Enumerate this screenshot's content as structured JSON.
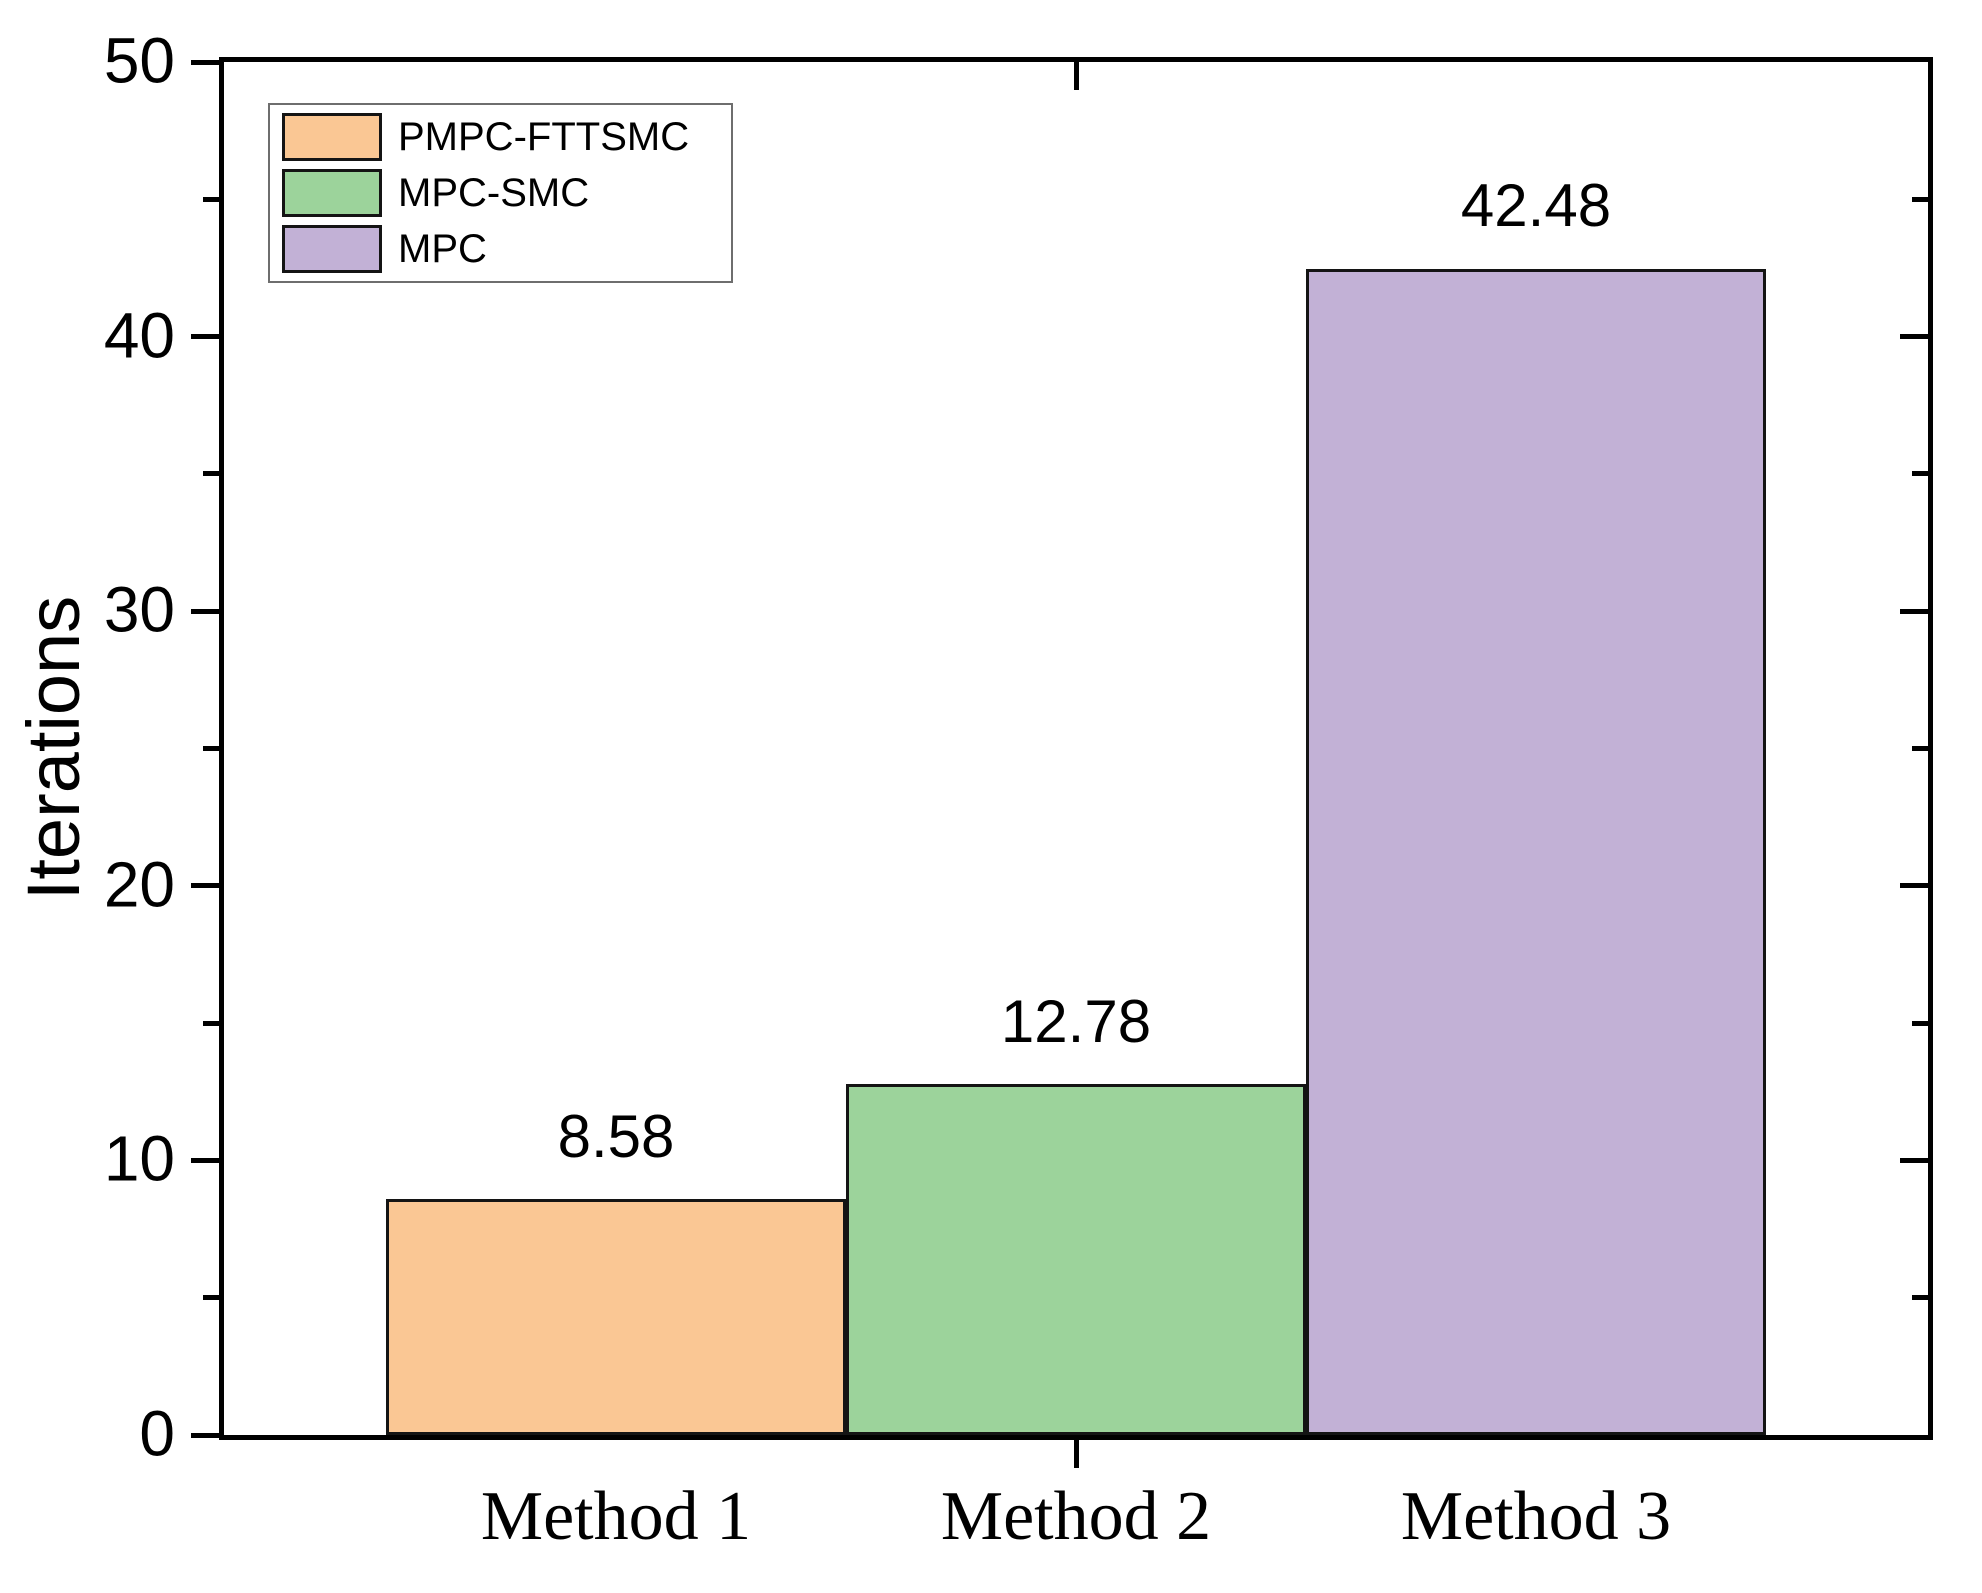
{
  "chart_data": {
    "type": "bar",
    "title": "",
    "xlabel": "",
    "ylabel": "Iterations",
    "ylim": [
      0,
      50
    ],
    "y_major_ticks": [
      0,
      10,
      20,
      30,
      40,
      50
    ],
    "y_minor_ticks": [
      5,
      15,
      25,
      35,
      45
    ],
    "grid": false,
    "categories": [
      "Method 1",
      "Method 2",
      "Method 3"
    ],
    "values": [
      8.58,
      12.78,
      42.48
    ],
    "value_labels": [
      "8.58",
      "12.78",
      "42.48"
    ],
    "bar_colors": [
      "#FAC794",
      "#9CD39B",
      "#C2B1D6"
    ],
    "axis_color": "#000000",
    "legend": {
      "position": "top-left",
      "entries": [
        {
          "label": "PMPC-FTTSMC",
          "color": "#FAC794"
        },
        {
          "label": "MPC-SMC",
          "color": "#9CD39B"
        },
        {
          "label": "MPC",
          "color": "#C2B1D6"
        }
      ]
    }
  }
}
